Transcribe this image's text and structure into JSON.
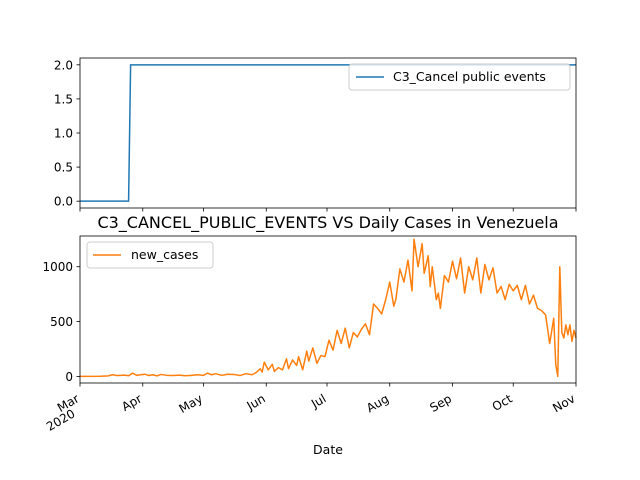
{
  "chart_data": [
    {
      "type": "line",
      "title": "",
      "xlabel": "",
      "ylabel": "",
      "xlim": [
        "2020-03-01",
        "2020-11-01"
      ],
      "ylim": [
        -0.1,
        2.1
      ],
      "yticks": [
        0.0,
        0.5,
        1.0,
        1.5,
        2.0
      ],
      "ytick_labels": [
        "0.0",
        "0.5",
        "1.0",
        "1.5",
        "2.0"
      ],
      "legend_position": "upper right",
      "series": [
        {
          "name": "C3_Cancel public events",
          "color": "#1f77b4",
          "step": true,
          "x": [
            "2020-03-01",
            "2020-03-25",
            "2020-03-26",
            "2020-11-01"
          ],
          "y": [
            0,
            0,
            2,
            2
          ]
        }
      ]
    },
    {
      "type": "line",
      "title": "C3_CANCEL_PUBLIC_EVENTS VS Daily Cases in Venezuela",
      "xlabel": "Date",
      "ylabel": "",
      "xlim": [
        "2020-03-01",
        "2020-11-01"
      ],
      "ylim": [
        -60,
        1280
      ],
      "yticks": [
        0,
        500,
        1000
      ],
      "ytick_labels": [
        "0",
        "500",
        "1000"
      ],
      "xtick_labels": [
        {
          "date": "2020-03-01",
          "text": "Mar",
          "subtext": "2020"
        },
        {
          "date": "2020-04-01",
          "text": "Apr"
        },
        {
          "date": "2020-05-01",
          "text": "May"
        },
        {
          "date": "2020-06-01",
          "text": "Jun"
        },
        {
          "date": "2020-07-01",
          "text": "Jul"
        },
        {
          "date": "2020-08-01",
          "text": "Aug"
        },
        {
          "date": "2020-09-01",
          "text": "Sep"
        },
        {
          "date": "2020-10-01",
          "text": "Oct"
        },
        {
          "date": "2020-11-01",
          "text": "Nov"
        }
      ],
      "legend_position": "upper left",
      "series": [
        {
          "name": "new_cases",
          "color": "#ff7f0e",
          "x": [
            "2020-03-01",
            "2020-03-11",
            "2020-03-15",
            "2020-03-17",
            "2020-03-19",
            "2020-03-21",
            "2020-03-23",
            "2020-03-25",
            "2020-03-27",
            "2020-03-29",
            "2020-03-31",
            "2020-04-02",
            "2020-04-04",
            "2020-04-06",
            "2020-04-08",
            "2020-04-10",
            "2020-04-13",
            "2020-04-16",
            "2020-04-19",
            "2020-04-22",
            "2020-04-25",
            "2020-04-28",
            "2020-05-01",
            "2020-05-03",
            "2020-05-05",
            "2020-05-07",
            "2020-05-10",
            "2020-05-13",
            "2020-05-16",
            "2020-05-19",
            "2020-05-22",
            "2020-05-25",
            "2020-05-27",
            "2020-05-29",
            "2020-05-30",
            "2020-05-31",
            "2020-06-02",
            "2020-06-04",
            "2020-06-05",
            "2020-06-07",
            "2020-06-09",
            "2020-06-11",
            "2020-06-12",
            "2020-06-14",
            "2020-06-16",
            "2020-06-17",
            "2020-06-19",
            "2020-06-21",
            "2020-06-22",
            "2020-06-24",
            "2020-06-26",
            "2020-06-28",
            "2020-06-30",
            "2020-07-02",
            "2020-07-04",
            "2020-07-06",
            "2020-07-08",
            "2020-07-10",
            "2020-07-12",
            "2020-07-14",
            "2020-07-16",
            "2020-07-18",
            "2020-07-20",
            "2020-07-22",
            "2020-07-24",
            "2020-07-26",
            "2020-07-28",
            "2020-07-30",
            "2020-08-01",
            "2020-08-03",
            "2020-08-04",
            "2020-08-06",
            "2020-08-08",
            "2020-08-10",
            "2020-08-12",
            "2020-08-13",
            "2020-08-15",
            "2020-08-17",
            "2020-08-18",
            "2020-08-20",
            "2020-08-21",
            "2020-08-22",
            "2020-08-24",
            "2020-08-25",
            "2020-08-26",
            "2020-08-28",
            "2020-08-30",
            "2020-09-01",
            "2020-09-03",
            "2020-09-05",
            "2020-09-07",
            "2020-09-09",
            "2020-09-11",
            "2020-09-13",
            "2020-09-15",
            "2020-09-17",
            "2020-09-19",
            "2020-09-21",
            "2020-09-23",
            "2020-09-25",
            "2020-09-27",
            "2020-09-29",
            "2020-10-01",
            "2020-10-03",
            "2020-10-05",
            "2020-10-07",
            "2020-10-09",
            "2020-10-11",
            "2020-10-13",
            "2020-10-15",
            "2020-10-17",
            "2020-10-19",
            "2020-10-21",
            "2020-10-22",
            "2020-10-23",
            "2020-10-24",
            "2020-10-25",
            "2020-10-26",
            "2020-10-27",
            "2020-10-28",
            "2020-10-29",
            "2020-10-30",
            "2020-10-31",
            "2020-11-01"
          ],
          "y": [
            0,
            2,
            5,
            15,
            8,
            10,
            12,
            6,
            30,
            10,
            15,
            20,
            8,
            15,
            5,
            18,
            10,
            8,
            12,
            6,
            10,
            15,
            10,
            30,
            15,
            25,
            10,
            20,
            18,
            8,
            25,
            15,
            35,
            70,
            40,
            130,
            60,
            110,
            45,
            80,
            60,
            160,
            70,
            150,
            100,
            180,
            60,
            230,
            140,
            260,
            120,
            190,
            180,
            330,
            240,
            420,
            300,
            440,
            260,
            400,
            360,
            430,
            480,
            380,
            660,
            620,
            570,
            700,
            860,
            640,
            700,
            980,
            860,
            1060,
            780,
            1250,
            1000,
            1210,
            940,
            1100,
            820,
            1000,
            700,
            760,
            620,
            920,
            860,
            1050,
            890,
            1080,
            760,
            1000,
            880,
            1080,
            760,
            1020,
            880,
            990,
            760,
            820,
            700,
            840,
            780,
            830,
            700,
            830,
            660,
            740,
            620,
            600,
            560,
            300,
            530,
            110,
            0,
            1000,
            400,
            350,
            470,
            380,
            470,
            320,
            420,
            350
          ]
        }
      ]
    }
  ]
}
